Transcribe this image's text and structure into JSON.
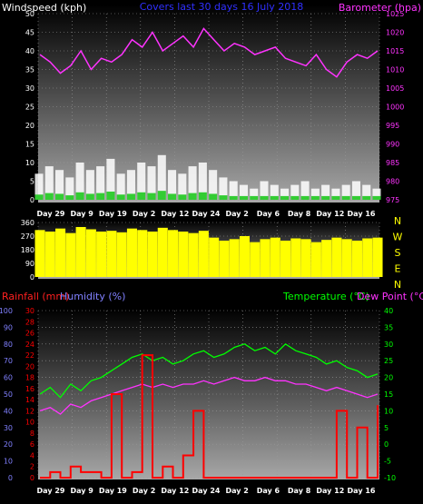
{
  "colors": {
    "wind": "#ffffff",
    "gust_low": "#33cc33",
    "barometer": "#ff33ff",
    "direction": "#ffff00",
    "rainfall": "#ff0000",
    "humidity": "#8080ff",
    "temperature": "#00ff00",
    "dew_point": "#ff33ff",
    "title": "#3030ff"
  },
  "chart_data": [
    {
      "type": "line",
      "title": "Covers last 30 days 16 July 2018",
      "left_axis": {
        "label": "Windspeed (kph)",
        "ylim": [
          0,
          50
        ],
        "ticks": [
          "0",
          "5",
          "10",
          "15",
          "20",
          "25",
          "30",
          "35",
          "40",
          "45",
          "50"
        ]
      },
      "right_axis": {
        "label": "Barometer (hpa)",
        "ylim": [
          975,
          1025
        ],
        "ticks": [
          "975",
          "980",
          "985",
          "990",
          "995",
          "1000",
          "1005",
          "1010",
          "1015",
          "1020",
          "1025"
        ]
      },
      "x_tick_labels": [
        "Day 29",
        "Day 9",
        "Day 19",
        "Day 2",
        "Day 12",
        "Day 24",
        "Day 2",
        "Day 6",
        "Day 8",
        "Day 12",
        "Day 16"
      ],
      "series": [
        {
          "name": "Barometer",
          "axis": "right",
          "values": [
            1014,
            1012,
            1009,
            1011,
            1015,
            1010,
            1013,
            1012,
            1014,
            1018,
            1016,
            1020,
            1015,
            1017,
            1019,
            1016,
            1021,
            1018,
            1015,
            1017,
            1016,
            1014,
            1015,
            1016,
            1013,
            1012,
            1011,
            1014,
            1010,
            1008,
            1012,
            1014,
            1013,
            1015
          ]
        },
        {
          "name": "Windspeed",
          "axis": "left",
          "values": [
            7,
            9,
            8,
            6,
            10,
            8,
            9,
            11,
            7,
            8,
            10,
            9,
            12,
            8,
            7,
            9,
            10,
            8,
            6,
            5,
            4,
            3,
            5,
            4,
            3,
            4,
            5,
            3,
            4,
            3,
            4,
            5,
            4,
            3
          ]
        }
      ]
    },
    {
      "type": "area",
      "title": "",
      "left_axis": {
        "label": "",
        "ylim": [
          0,
          360
        ],
        "ticks": [
          "0",
          "90",
          "180",
          "270",
          "360"
        ]
      },
      "right_axis": {
        "label": "",
        "ticks": [
          "N",
          "W",
          "S",
          "E",
          "N"
        ]
      },
      "series": [
        {
          "name": "Wind direction",
          "values": [
            310,
            300,
            320,
            290,
            330,
            315,
            300,
            305,
            295,
            320,
            310,
            300,
            325,
            310,
            300,
            290,
            305,
            260,
            240,
            250,
            270,
            230,
            250,
            260,
            240,
            255,
            250,
            230,
            245,
            260,
            250,
            240,
            255,
            260
          ]
        }
      ]
    },
    {
      "type": "line",
      "title": "",
      "left_axis": {
        "labels": [
          "Rainfall (mm)",
          "Humidity (%)"
        ],
        "humidity_ticks": [
          "0",
          "10",
          "20",
          "30",
          "40",
          "50",
          "60",
          "70",
          "80",
          "90",
          "100"
        ],
        "rain_ticks": [
          "0",
          "2",
          "4",
          "6",
          "8",
          "10",
          "12",
          "14",
          "16",
          "18",
          "20",
          "22",
          "24",
          "26",
          "28",
          "30"
        ],
        "humidity_ylim": [
          0,
          100
        ],
        "rain_ylim": [
          0,
          30
        ]
      },
      "right_axis": {
        "labels": [
          "Temperature (°C)",
          "Dew Point (°C)"
        ],
        "ticks": [
          "-10",
          "-5",
          "0",
          "5",
          "10",
          "15",
          "20",
          "25",
          "30",
          "35",
          "40"
        ],
        "ylim": [
          -10,
          40
        ]
      },
      "x_tick_labels": [
        "Day 29",
        "Day 9",
        "Day 19",
        "Day 2",
        "Day 12",
        "Day 24",
        "Day 2",
        "Day 6",
        "Day 8",
        "Day 12",
        "Day 16"
      ],
      "series": [
        {
          "name": "Temperature",
          "axis": "right",
          "values": [
            15,
            17,
            14,
            18,
            16,
            19,
            20,
            22,
            24,
            26,
            27,
            25,
            26,
            24,
            25,
            27,
            28,
            26,
            27,
            29,
            30,
            28,
            29,
            27,
            30,
            28,
            27,
            26,
            24,
            25,
            23,
            22,
            20,
            21
          ]
        },
        {
          "name": "Dew Point",
          "axis": "right",
          "values": [
            10,
            11,
            9,
            12,
            11,
            13,
            14,
            15,
            16,
            17,
            18,
            17,
            18,
            17,
            18,
            18,
            19,
            18,
            19,
            20,
            19,
            19,
            20,
            19,
            19,
            18,
            18,
            17,
            16,
            17,
            16,
            15,
            14,
            15
          ]
        },
        {
          "name": "Rainfall",
          "axis": "left_rain",
          "values": [
            0,
            1,
            0,
            2,
            1,
            1,
            0,
            15,
            0,
            1,
            22,
            0,
            2,
            0,
            4,
            12,
            0,
            0,
            0,
            0,
            0,
            0,
            0,
            0,
            0,
            0,
            0,
            0,
            0,
            12,
            0,
            9,
            0,
            13
          ]
        }
      ]
    }
  ]
}
